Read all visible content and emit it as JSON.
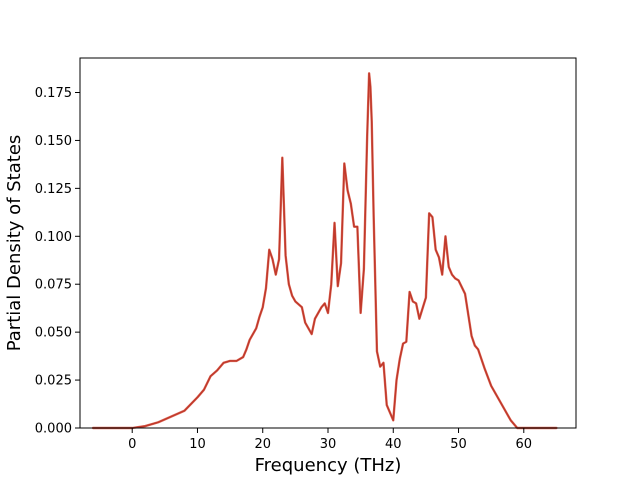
{
  "chart_data": {
    "type": "line",
    "title": "",
    "xlabel": "Frequency (THz)",
    "ylabel": "Partial Density of States",
    "xlim": [
      -8,
      68
    ],
    "ylim": [
      0,
      0.193
    ],
    "grid": false,
    "legend": "none",
    "colors": {
      "series_dark": "#c0392b",
      "series_light": "#e07060",
      "axes": "#000000",
      "background": "#ffffff"
    },
    "x_ticks": [
      {
        "value": 0,
        "label": "0"
      },
      {
        "value": 10,
        "label": "10"
      },
      {
        "value": 20,
        "label": "20"
      },
      {
        "value": 30,
        "label": "30"
      },
      {
        "value": 40,
        "label": "40"
      },
      {
        "value": 50,
        "label": "50"
      },
      {
        "value": 60,
        "label": "60"
      }
    ],
    "y_ticks": [
      {
        "value": 0.0,
        "label": "0.000"
      },
      {
        "value": 0.025,
        "label": "0.025"
      },
      {
        "value": 0.05,
        "label": "0.050"
      },
      {
        "value": 0.075,
        "label": "0.075"
      },
      {
        "value": 0.1,
        "label": "0.100"
      },
      {
        "value": 0.125,
        "label": "0.125"
      },
      {
        "value": 0.15,
        "label": "0.150"
      },
      {
        "value": 0.175,
        "label": "0.175"
      }
    ],
    "series": [
      {
        "x": [
          -6,
          -2,
          0,
          2,
          4,
          6,
          8,
          10,
          11,
          12,
          13,
          14,
          15,
          16,
          17,
          17.5,
          18,
          19,
          19.5,
          20,
          20.5,
          21,
          21.5,
          22,
          22.5,
          23,
          23.5,
          24,
          24.5,
          25,
          26,
          26.5,
          27.5,
          28,
          29,
          29.5,
          30,
          30.5,
          31,
          31.5,
          32,
          32.5,
          33,
          33.5,
          34,
          34.5,
          35,
          35.5,
          36,
          36.3,
          36.5,
          36.7,
          37,
          37.5,
          38,
          38.5,
          39,
          40,
          40.5,
          41,
          41.5,
          42,
          42.5,
          43,
          43.5,
          44,
          45,
          45.5,
          46,
          46.5,
          47,
          47.5,
          48,
          48.5,
          49,
          49.5,
          50,
          51,
          52,
          52.5,
          53,
          54,
          55,
          56,
          57,
          58,
          59,
          60,
          62,
          65
        ],
        "y": [
          0.0,
          0.0,
          0.0,
          0.001,
          0.003,
          0.006,
          0.009,
          0.016,
          0.02,
          0.027,
          0.03,
          0.034,
          0.035,
          0.035,
          0.037,
          0.041,
          0.046,
          0.052,
          0.058,
          0.063,
          0.073,
          0.093,
          0.088,
          0.08,
          0.088,
          0.141,
          0.09,
          0.075,
          0.069,
          0.066,
          0.063,
          0.055,
          0.049,
          0.057,
          0.063,
          0.065,
          0.06,
          0.075,
          0.107,
          0.074,
          0.086,
          0.138,
          0.124,
          0.117,
          0.105,
          0.105,
          0.06,
          0.083,
          0.152,
          0.185,
          0.178,
          0.16,
          0.11,
          0.04,
          0.032,
          0.034,
          0.012,
          0.004,
          0.025,
          0.036,
          0.044,
          0.045,
          0.071,
          0.066,
          0.065,
          0.057,
          0.068,
          0.112,
          0.11,
          0.093,
          0.089,
          0.08,
          0.1,
          0.084,
          0.08,
          0.078,
          0.077,
          0.07,
          0.048,
          0.043,
          0.041,
          0.031,
          0.022,
          0.016,
          0.01,
          0.004,
          0.0,
          0.0,
          0.0,
          0.0
        ]
      }
    ]
  }
}
